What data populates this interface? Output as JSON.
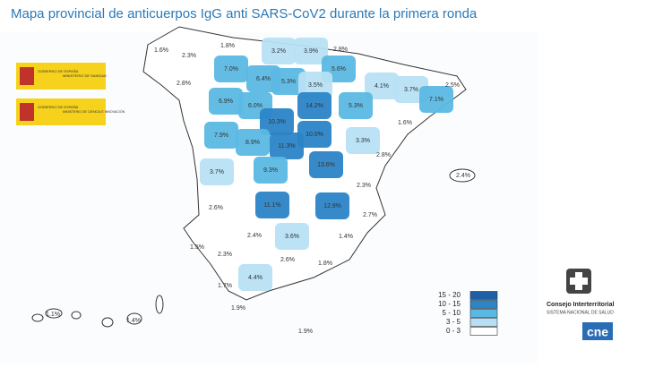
{
  "header": {
    "title": "Mapa provincial de anticuerpos IgG anti SARS-CoV2 durante la primera ronda"
  },
  "logos": {
    "gov1": "GOBIERNO DE ESPAÑA",
    "ministry1": "MINISTERIO DE SANIDAD",
    "gov2": "GOBIERNO DE ESPAÑA",
    "ministry2": "MINISTERIO DE CIENCIA E INNOVACIÓN",
    "council": "Consejo Interterritorial",
    "council_sub": "SISTEMA NACIONAL DE SALUD",
    "cne": "cne"
  },
  "legend": [
    {
      "label": "15 - 20",
      "min": 15,
      "max": 20,
      "color": "#1f5fa6"
    },
    {
      "label": "10 - 15",
      "min": 10,
      "max": 15,
      "color": "#2b84c6"
    },
    {
      "label": "5 - 10",
      "min": 5,
      "max": 10,
      "color": "#5bb8e3"
    },
    {
      "label": "3 - 5",
      "min": 3,
      "max": 5,
      "color": "#b7e0f4"
    },
    {
      "label": "0 - 3",
      "min": 0,
      "max": 3,
      "color": "#ffffff"
    }
  ],
  "provinces": [
    {
      "value": 1.6,
      "label": "1.6%"
    },
    {
      "value": 1.8,
      "label": "1.8%"
    },
    {
      "value": 2.3,
      "label": "2.3%"
    },
    {
      "value": 2.8,
      "label": "2.8%"
    },
    {
      "value": 7.0,
      "label": "7.0%"
    },
    {
      "value": 3.2,
      "label": "3.2%"
    },
    {
      "value": 3.9,
      "label": "3.9%"
    },
    {
      "value": 2.8,
      "label": "2.8%"
    },
    {
      "value": 6.4,
      "label": "6.4%"
    },
    {
      "value": 5.3,
      "label": "5.3%"
    },
    {
      "value": 5.6,
      "label": "5.6%"
    },
    {
      "value": 3.5,
      "label": "3.5%"
    },
    {
      "value": 4.1,
      "label": "4.1%"
    },
    {
      "value": 3.7,
      "label": "3.7%"
    },
    {
      "value": 2.5,
      "label": "2.5%"
    },
    {
      "value": 7.1,
      "label": "7.1%"
    },
    {
      "value": 6.9,
      "label": "6.9%"
    },
    {
      "value": 6.0,
      "label": "6.0%"
    },
    {
      "value": 14.2,
      "label": "14.2%"
    },
    {
      "value": 5.3,
      "label": "5.3%"
    },
    {
      "value": 1.6,
      "label": "1.6%"
    },
    {
      "value": 10.3,
      "label": "10.3%"
    },
    {
      "value": 10.0,
      "label": "10.0%"
    },
    {
      "value": 7.9,
      "label": "7.9%"
    },
    {
      "value": 8.9,
      "label": "8.9%"
    },
    {
      "value": 11.3,
      "label": "11.3%"
    },
    {
      "value": 3.3,
      "label": "3.3%"
    },
    {
      "value": 13.6,
      "label": "13.6%"
    },
    {
      "value": 2.8,
      "label": "2.8%"
    },
    {
      "value": 3.7,
      "label": "3.7%"
    },
    {
      "value": 9.3,
      "label": "9.3%"
    },
    {
      "value": 2.4,
      "label": "2.4%"
    },
    {
      "value": 2.3,
      "label": "2.3%"
    },
    {
      "value": 11.1,
      "label": "11.1%"
    },
    {
      "value": 12.9,
      "label": "12.9%"
    },
    {
      "value": 2.6,
      "label": "2.6%"
    },
    {
      "value": 2.7,
      "label": "2.7%"
    },
    {
      "value": 2.4,
      "label": "2.4%"
    },
    {
      "value": 3.6,
      "label": "3.6%"
    },
    {
      "value": 1.4,
      "label": "1.4%"
    },
    {
      "value": 1.5,
      "label": "1.5%"
    },
    {
      "value": 2.3,
      "label": "2.3%"
    },
    {
      "value": 2.6,
      "label": "2.6%"
    },
    {
      "value": 1.8,
      "label": "1.8%"
    },
    {
      "value": 4.4,
      "label": "4.4%"
    },
    {
      "value": 1.7,
      "label": "1.7%"
    },
    {
      "value": 1.1,
      "label": "1.1%"
    },
    {
      "value": 1.4,
      "label": "1.4%"
    },
    {
      "value": 1.9,
      "label": "1.9%"
    },
    {
      "value": 1.9,
      "label": "1.9%"
    }
  ]
}
